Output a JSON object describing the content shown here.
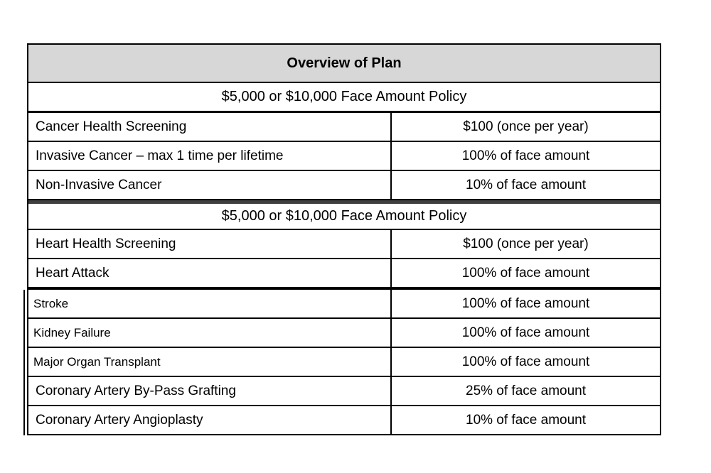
{
  "table": {
    "title": "Overview of Plan",
    "colors": {
      "header_bg": "#d7d7d7",
      "divider": "#3f3f3f",
      "border": "#000000"
    },
    "sections": [
      {
        "policy_header": "$5,000 or $10,000 Face Amount Policy",
        "rows": [
          {
            "benefit": "Cancer Health Screening",
            "amount": "$100 (once per year)"
          },
          {
            "benefit": "Invasive Cancer – max 1 time per lifetime",
            "amount": "100% of face amount"
          },
          {
            "benefit": "Non-Invasive Cancer",
            "amount": "10% of face amount"
          }
        ]
      },
      {
        "policy_header": "$5,000 or $10,000 Face Amount Policy",
        "rows": [
          {
            "benefit": "Heart Health Screening",
            "amount": "$100 (once per year)"
          },
          {
            "benefit": "Heart Attack",
            "amount": "100% of face amount"
          },
          {
            "benefit": "Stroke",
            "amount": "100% of face amount"
          },
          {
            "benefit": "Kidney Failure",
            "amount": "100% of face amount"
          },
          {
            "benefit": "Major Organ Transplant",
            "amount": "100% of face amount"
          },
          {
            "benefit": "Coronary Artery By-Pass Grafting",
            "amount": "25% of face amount"
          },
          {
            "benefit": "Coronary Artery Angioplasty",
            "amount": "10% of face amount"
          }
        ]
      }
    ]
  }
}
